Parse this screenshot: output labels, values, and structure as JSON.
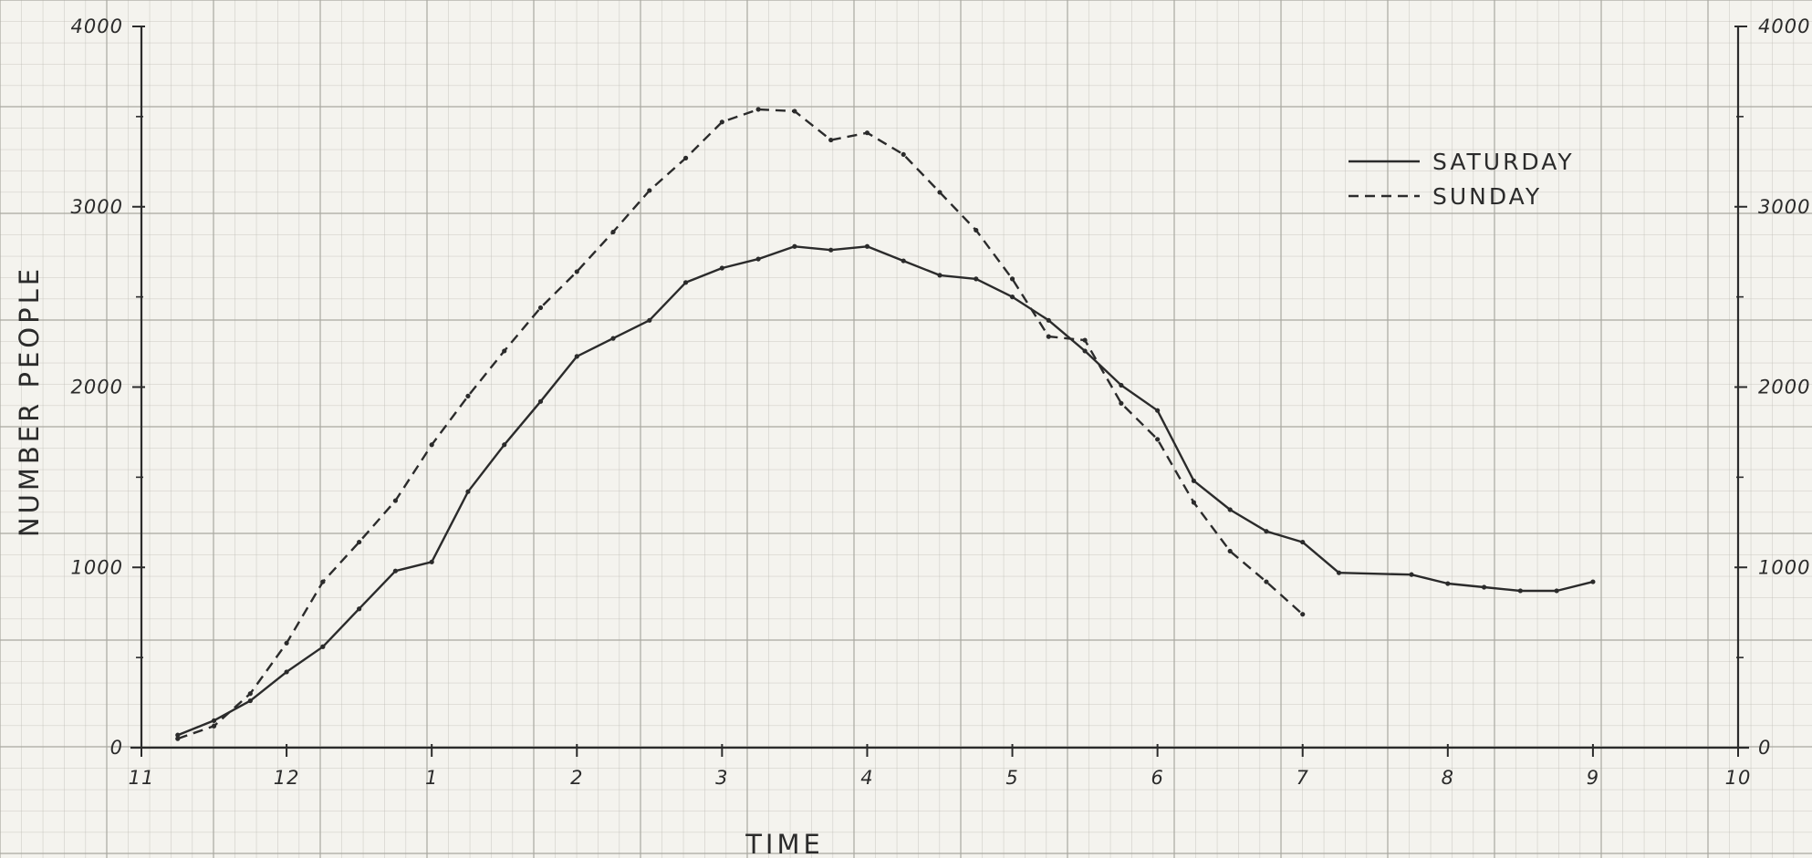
{
  "chart_data": {
    "type": "line",
    "title": "",
    "xlabel": "TIME",
    "ylabel": "NUMBER PEOPLE",
    "x_tick_labels": [
      "11",
      "12",
      "1",
      "2",
      "3",
      "4",
      "5",
      "6",
      "7",
      "8",
      "9",
      "10"
    ],
    "y_tick_labels": [
      "0",
      "1000",
      "2000",
      "3000",
      "4000"
    ],
    "y_ticks": [
      0,
      1000,
      2000,
      3000,
      4000
    ],
    "ylim": [
      0,
      4000
    ],
    "xlim": [
      11,
      22
    ],
    "grid": true,
    "legend_position": "top-right",
    "series": [
      {
        "name": "SATURDAY",
        "style": "solid",
        "color": "#2b2b2b",
        "x": [
          11.25,
          11.5,
          11.75,
          12.0,
          12.25,
          12.5,
          12.75,
          13.0,
          13.25,
          13.5,
          13.75,
          14.0,
          14.25,
          14.5,
          14.75,
          15.0,
          15.25,
          15.5,
          15.75,
          16.0,
          16.25,
          16.5,
          16.75,
          17.0,
          17.25,
          17.5,
          17.75,
          18.0,
          18.25,
          18.5,
          18.75,
          19.0,
          19.25,
          19.75,
          20.0,
          20.25,
          20.5,
          20.75,
          21.0
        ],
        "y": [
          70,
          150,
          260,
          420,
          560,
          770,
          980,
          1030,
          1420,
          1680,
          1920,
          2170,
          2270,
          2370,
          2580,
          2660,
          2710,
          2780,
          2760,
          2780,
          2700,
          2620,
          2600,
          2500,
          2370,
          2200,
          2010,
          1870,
          1480,
          1320,
          1200,
          1140,
          970,
          960,
          910,
          890,
          870,
          870,
          920
        ]
      },
      {
        "name": "SUNDAY",
        "style": "dashed",
        "color": "#2b2b2b",
        "x": [
          11.25,
          11.5,
          11.75,
          12.0,
          12.25,
          12.5,
          12.75,
          13.0,
          13.25,
          13.5,
          13.75,
          14.0,
          14.25,
          14.5,
          14.75,
          15.0,
          15.25,
          15.5,
          15.75,
          16.0,
          16.25,
          16.5,
          16.75,
          17.0,
          17.25,
          17.5,
          17.75,
          18.0,
          18.25,
          18.5,
          18.75,
          19.0
        ],
        "y": [
          50,
          120,
          300,
          580,
          920,
          1140,
          1370,
          1680,
          1950,
          2200,
          2440,
          2640,
          2860,
          3090,
          3270,
          3470,
          3540,
          3530,
          3370,
          3410,
          3290,
          3080,
          2870,
          2600,
          2280,
          2260,
          1910,
          1710,
          1360,
          1090,
          920,
          740
        ]
      }
    ]
  }
}
